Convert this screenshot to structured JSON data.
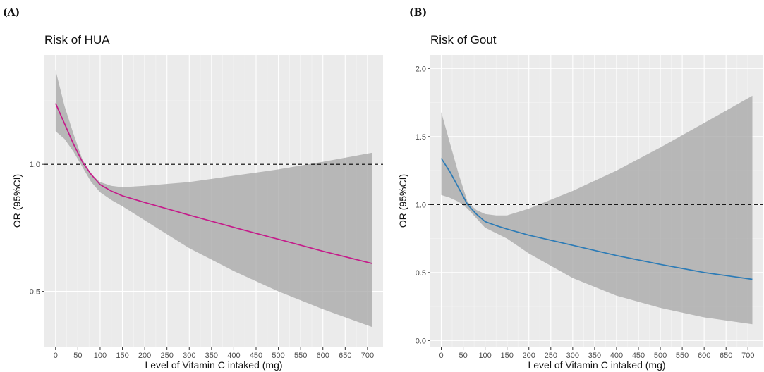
{
  "chart_data": [
    {
      "type": "line",
      "panel_label": "(A)",
      "title": "Risk of HUA",
      "xlabel": "Level of Vitamin C intaked (mg)",
      "ylabel": "OR (95%CI)",
      "xlim": [
        -25,
        735
      ],
      "ylim": [
        0.28,
        1.43
      ],
      "x_ticks": [
        0,
        50,
        100,
        150,
        200,
        250,
        300,
        350,
        400,
        450,
        500,
        550,
        600,
        650,
        700
      ],
      "y_ticks": [
        0.5,
        1.0
      ],
      "y_tick_labels": [
        "0.5",
        "1.0"
      ],
      "reference_line": 1.0,
      "grid": true,
      "background": "#ebebeb",
      "series": [
        {
          "color": "#c51b8a",
          "x": [
            0,
            20,
            40,
            60,
            80,
            100,
            125,
            150,
            200,
            300,
            400,
            500,
            600,
            710
          ],
          "y": [
            1.24,
            1.16,
            1.08,
            1.01,
            0.96,
            0.92,
            0.895,
            0.876,
            0.85,
            0.8,
            0.752,
            0.705,
            0.658,
            0.61
          ],
          "lower": [
            1.13,
            1.1,
            1.05,
            0.99,
            0.93,
            0.89,
            0.86,
            0.835,
            0.78,
            0.67,
            0.58,
            0.5,
            0.43,
            0.36
          ],
          "upper": [
            1.37,
            1.23,
            1.12,
            1.02,
            0.96,
            0.93,
            0.915,
            0.91,
            0.915,
            0.93,
            0.955,
            0.98,
            1.01,
            1.045
          ]
        }
      ]
    },
    {
      "type": "line",
      "panel_label": "(B)",
      "title": "Risk of Gout",
      "xlabel": "Level of Vitamin C intaked (mg)",
      "ylabel": "OR (95%CI)",
      "xlim": [
        -25,
        735
      ],
      "ylim": [
        -0.05,
        2.1
      ],
      "x_ticks": [
        0,
        50,
        100,
        150,
        200,
        250,
        300,
        350,
        400,
        450,
        500,
        550,
        600,
        650,
        700
      ],
      "y_ticks": [
        0.0,
        0.5,
        1.0,
        1.5,
        2.0
      ],
      "y_tick_labels": [
        "0.0",
        "0.5",
        "1.0",
        "1.5",
        "2.0"
      ],
      "reference_line": 1.0,
      "grid": true,
      "background": "#ebebeb",
      "series": [
        {
          "color": "#2c7bb6",
          "x": [
            0,
            20,
            40,
            60,
            80,
            100,
            125,
            150,
            200,
            300,
            400,
            500,
            600,
            710
          ],
          "y": [
            1.34,
            1.24,
            1.12,
            1.0,
            0.93,
            0.875,
            0.845,
            0.82,
            0.775,
            0.7,
            0.625,
            0.56,
            0.5,
            0.45
          ],
          "lower": [
            1.07,
            1.05,
            1.02,
            0.97,
            0.9,
            0.83,
            0.79,
            0.75,
            0.64,
            0.46,
            0.33,
            0.24,
            0.17,
            0.12
          ],
          "upper": [
            1.68,
            1.45,
            1.22,
            1.02,
            0.96,
            0.93,
            0.92,
            0.92,
            0.97,
            1.1,
            1.25,
            1.42,
            1.6,
            1.8
          ]
        }
      ]
    }
  ]
}
